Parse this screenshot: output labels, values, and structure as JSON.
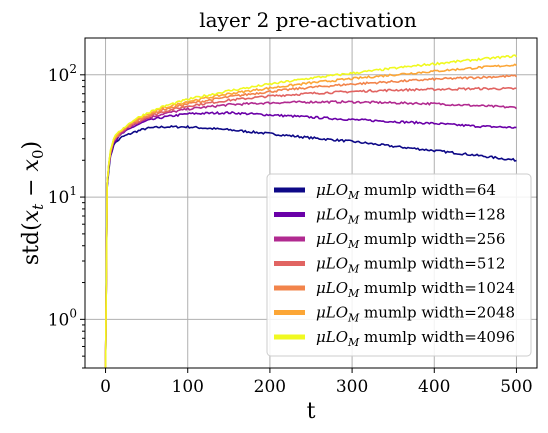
{
  "chart_data": {
    "type": "line",
    "title": "layer 2 pre-activation",
    "xlabel": "t",
    "ylabel": "std(x_t − x_0)",
    "xlim": [
      -25,
      525
    ],
    "ylim": [
      0.4,
      200
    ],
    "yscale": "log",
    "grid": true,
    "legend_position": "lower-right",
    "x_ticks": [
      0,
      100,
      200,
      300,
      400,
      500
    ],
    "y_ticks": [
      {
        "value": 1,
        "base": "10",
        "exp": "0"
      },
      {
        "value": 10,
        "base": "10",
        "exp": "1"
      },
      {
        "value": 100,
        "base": "10",
        "exp": "2"
      }
    ],
    "series": [
      {
        "name": "μLO_M mumlp width=64",
        "legend_prefix": "μLO",
        "legend_sub": "M",
        "legend_text": " mumlp width=64",
        "color": "#0d0887",
        "x": [
          0,
          2,
          5,
          10,
          20,
          35,
          50,
          70,
          100,
          150,
          200,
          250,
          300,
          350,
          400,
          450,
          500
        ],
        "y": [
          0.4,
          12,
          20,
          27,
          31,
          34,
          36.5,
          37.5,
          37.5,
          35.5,
          33,
          30.5,
          28.5,
          26,
          24,
          22,
          20
        ]
      },
      {
        "name": "μLO_M mumlp width=128",
        "legend_prefix": "μLO",
        "legend_sub": "M",
        "legend_text": " mumlp width=128",
        "color": "#6a00a8",
        "x": [
          0,
          2,
          5,
          10,
          20,
          35,
          50,
          70,
          100,
          150,
          200,
          250,
          300,
          350,
          400,
          450,
          500
        ],
        "y": [
          0.4,
          13,
          21,
          28,
          33,
          38,
          42,
          45,
          48,
          49,
          47,
          45,
          43,
          41.5,
          40,
          38,
          37
        ]
      },
      {
        "name": "μLO_M mumlp width=256",
        "legend_prefix": "μLO",
        "legend_sub": "M",
        "legend_text": " mumlp width=256",
        "color": "#b12a90",
        "x": [
          0,
          2,
          5,
          10,
          20,
          35,
          50,
          70,
          100,
          150,
          200,
          250,
          300,
          350,
          400,
          450,
          500
        ],
        "y": [
          0.4,
          13,
          21,
          29,
          34,
          39.5,
          44,
          48,
          52.5,
          57,
          59,
          60,
          60,
          59,
          58,
          56,
          54
        ]
      },
      {
        "name": "μLO_M mumlp width=512",
        "legend_prefix": "μLO",
        "legend_sub": "M",
        "legend_text": " mumlp width=512",
        "color": "#e16462",
        "x": [
          0,
          2,
          5,
          10,
          20,
          35,
          50,
          70,
          100,
          150,
          200,
          250,
          300,
          350,
          400,
          450,
          500
        ],
        "y": [
          0.4,
          13,
          22,
          29,
          34.5,
          40,
          45,
          50,
          55.5,
          62,
          67,
          70.5,
          73,
          75,
          76,
          77,
          77
        ]
      },
      {
        "name": "μLO_M mumlp width=1024",
        "legend_prefix": "μLO",
        "legend_sub": "M",
        "legend_text": " mumlp width=1024",
        "color": "#f2844b",
        "x": [
          0,
          2,
          5,
          10,
          20,
          35,
          50,
          70,
          100,
          150,
          200,
          250,
          300,
          350,
          400,
          450,
          500
        ],
        "y": [
          0.4,
          13,
          22,
          29.5,
          35,
          41,
          46,
          52,
          58,
          66,
          73,
          79,
          84,
          88,
          92,
          95,
          98
        ]
      },
      {
        "name": "μLO_M mumlp width=2048",
        "legend_prefix": "μLO",
        "legend_sub": "M",
        "legend_text": " mumlp width=2048",
        "color": "#fca636",
        "x": [
          0,
          2,
          5,
          10,
          20,
          35,
          50,
          70,
          100,
          150,
          200,
          250,
          300,
          350,
          400,
          450,
          500
        ],
        "y": [
          0.4,
          13,
          22,
          30,
          35.5,
          42,
          47,
          53.5,
          60.5,
          70,
          78,
          86,
          93,
          100,
          107,
          114,
          121
        ]
      },
      {
        "name": "μLO_M mumlp width=4096",
        "legend_prefix": "μLO",
        "legend_sub": "M",
        "legend_text": " mumlp width=4096",
        "color": "#f0f921",
        "x": [
          0,
          2,
          5,
          10,
          20,
          35,
          50,
          70,
          100,
          150,
          200,
          250,
          300,
          350,
          400,
          450,
          500
        ],
        "y": [
          0.4,
          13,
          22.5,
          30.5,
          36,
          43,
          48.5,
          55,
          63,
          74,
          84,
          94,
          103,
          113,
          123,
          133,
          143
        ]
      }
    ]
  }
}
